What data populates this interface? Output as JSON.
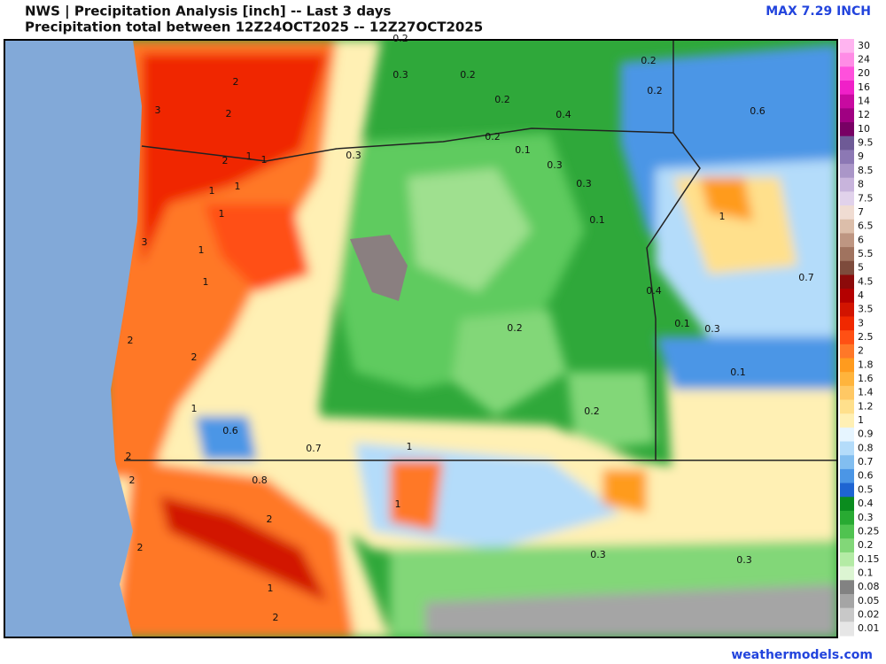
{
  "header": {
    "title": "NWS | Precipitation Analysis [inch] -- Last 3 days",
    "subtitle": "Precipitation total between 12Z24OCT2025 -- 12Z27OCT2025",
    "max_label": "MAX 7.29 INCH"
  },
  "colorbar": {
    "levels": [
      {
        "label": 30,
        "color": "#ffb4f0"
      },
      {
        "label": 24,
        "color": "#ff8ce6"
      },
      {
        "label": 20,
        "color": "#ff50dc"
      },
      {
        "label": 16,
        "color": "#f020c8"
      },
      {
        "label": 14,
        "color": "#c80aa0"
      },
      {
        "label": 12,
        "color": "#a00082"
      },
      {
        "label": 10,
        "color": "#780064"
      },
      {
        "label": 9.5,
        "color": "#6e5a96"
      },
      {
        "label": 9,
        "color": "#8c78b4"
      },
      {
        "label": 8.5,
        "color": "#aa96c8"
      },
      {
        "label": 8,
        "color": "#c8b4dc"
      },
      {
        "label": 7.5,
        "color": "#e1d2eb"
      },
      {
        "label": 7,
        "color": "#f0dcd2"
      },
      {
        "label": 6.5,
        "color": "#dcbeaa"
      },
      {
        "label": 6,
        "color": "#be9682"
      },
      {
        "label": 5.5,
        "color": "#a0735f"
      },
      {
        "label": 5,
        "color": "#7d4b3c"
      },
      {
        "label": 4.5,
        "color": "#8c0a0a"
      },
      {
        "label": 4,
        "color": "#b40000"
      },
      {
        "label": 3.5,
        "color": "#d21400"
      },
      {
        "label": 3,
        "color": "#f02800"
      },
      {
        "label": 2.5,
        "color": "#ff5014"
      },
      {
        "label": 2,
        "color": "#ff7828"
      },
      {
        "label": 1.8,
        "color": "#ff9b1e"
      },
      {
        "label": 1.6,
        "color": "#ffb43c"
      },
      {
        "label": 1.4,
        "color": "#ffc864"
      },
      {
        "label": 1.2,
        "color": "#ffe08c"
      },
      {
        "label": 1,
        "color": "#fff0b4"
      },
      {
        "label": 0.9,
        "color": "#e6f5ff"
      },
      {
        "label": 0.8,
        "color": "#b4dcfa"
      },
      {
        "label": 0.7,
        "color": "#82bef0"
      },
      {
        "label": 0.6,
        "color": "#4b96e6"
      },
      {
        "label": 0.5,
        "color": "#1e64d2"
      },
      {
        "label": 0.4,
        "color": "#0a8c1e"
      },
      {
        "label": 0.3,
        "color": "#28aa32"
      },
      {
        "label": 0.25,
        "color": "#50c350"
      },
      {
        "label": 0.2,
        "color": "#82d778"
      },
      {
        "label": 0.15,
        "color": "#b4eba5"
      },
      {
        "label": 0.1,
        "color": "#dcf5d2"
      },
      {
        "label": 0.08,
        "color": "#828282"
      },
      {
        "label": 0.05,
        "color": "#a5a5a5"
      },
      {
        "label": 0.02,
        "color": "#c8c8c8"
      },
      {
        "label": 0.01,
        "color": "#e6e6e6"
      }
    ]
  },
  "map_labels": [
    0.2,
    0.3,
    0.2,
    0.2,
    0.2,
    0.2,
    0.4,
    0.6,
    2,
    3,
    2,
    0.2,
    0.1,
    0.3,
    2,
    1,
    1,
    0.3,
    0.3,
    1,
    1,
    1,
    0.1,
    1,
    3,
    1,
    1,
    0.7,
    0.4,
    0.1,
    0.3,
    0.2,
    2,
    2,
    0.1,
    1,
    0.2,
    0.6,
    0.7,
    1,
    2,
    2,
    0.8,
    1,
    2,
    2,
    0.3,
    0.3,
    1,
    2
  ],
  "footer": {
    "site": "weathermodels.com"
  }
}
